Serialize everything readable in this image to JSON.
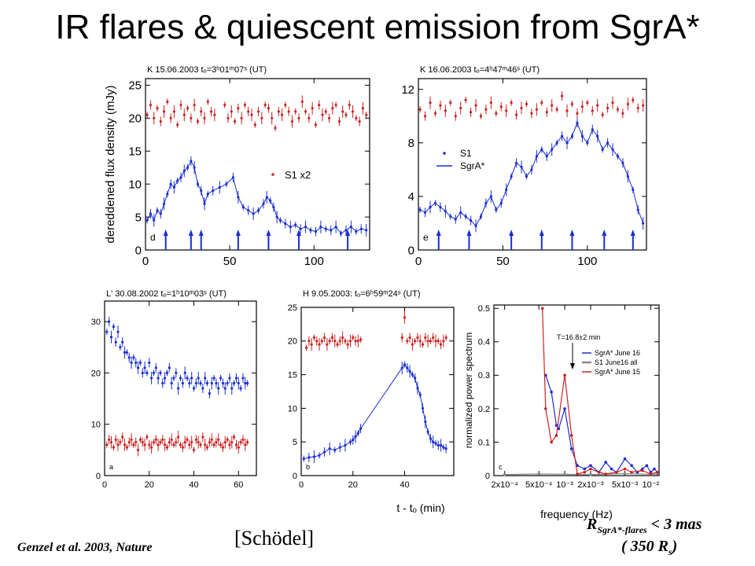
{
  "slide": {
    "title": "IR flares & quiescent emission from SgrA*",
    "citation": "Genzel et al. 2003, Nature",
    "attribution": "[Schödel]",
    "constraint_main": "R",
    "constraint_sub": "SgrA*-flares",
    "constraint_value": " < 3 mas",
    "constraint_line2": "( 350 R",
    "constraint_line2_sub": "s",
    "constraint_line2_end": ")"
  },
  "colors": {
    "red": "#cc2222",
    "blue": "#1a2fd0",
    "gray": "#888888",
    "black": "#000000"
  },
  "chart_data": [
    {
      "id": "d",
      "type": "scatter",
      "title": "K 15.06.2003 tₒ=3ʰ01ᵐ07ˢ (UT)",
      "ylabel": "dereddened flux density (mJy)",
      "xticks": [
        0,
        50,
        100
      ],
      "yticks": [
        0,
        5,
        10,
        15,
        20,
        25
      ],
      "xlim": [
        0,
        133
      ],
      "ylim": [
        0,
        26
      ],
      "panel_letter": "d",
      "legend": [
        "S1 x2"
      ],
      "arrows_x": [
        12,
        27,
        33,
        55,
        73,
        91,
        120
      ],
      "series": [
        {
          "name": "S1 x2",
          "color": "red",
          "style": "points",
          "x": [
            1,
            3,
            5,
            7,
            9,
            11,
            13,
            15,
            17,
            19,
            21,
            23,
            25,
            27,
            29,
            31,
            33,
            35,
            37,
            39,
            41,
            47,
            49,
            51,
            53,
            55,
            57,
            59,
            61,
            63,
            65,
            67,
            69,
            71,
            73,
            75,
            77,
            79,
            81,
            83,
            85,
            87,
            89,
            91,
            93,
            95,
            97,
            99,
            101,
            103,
            105,
            107,
            109,
            111,
            113,
            115,
            117,
            119,
            121,
            123,
            125,
            127,
            129,
            131
          ],
          "y": [
            20.5,
            22,
            20,
            21.5,
            19.5,
            21,
            22.5,
            20,
            21,
            19,
            22,
            20.5,
            21.5,
            20,
            22,
            19.5,
            21,
            20,
            22.5,
            21,
            20.5,
            22,
            20,
            21,
            19.5,
            21.5,
            20,
            22,
            21,
            20.5,
            19,
            21,
            20,
            22,
            21.5,
            20,
            18.5,
            21,
            20.5,
            22,
            21,
            19.5,
            21,
            20,
            22.5,
            21,
            20,
            21.5,
            19,
            22,
            20.5,
            21,
            20,
            21.5,
            22,
            19.5,
            21,
            20.5,
            22,
            21,
            20,
            19.5,
            21.5,
            20.5
          ]
        },
        {
          "name": "SgrA*",
          "color": "blue",
          "style": "line",
          "x": [
            1,
            3,
            5,
            7,
            9,
            11,
            13,
            15,
            17,
            19,
            21,
            23,
            25,
            27,
            29,
            31,
            33,
            35,
            37,
            40,
            44,
            48,
            52,
            55,
            58,
            61,
            64,
            67,
            70,
            72,
            74,
            76,
            78,
            80,
            83,
            86,
            89,
            92,
            95,
            98,
            101,
            104,
            107,
            110,
            113,
            116,
            119,
            122,
            125,
            128,
            131
          ],
          "y": [
            4.5,
            5.5,
            4.5,
            6,
            5.5,
            7,
            8.5,
            10,
            9.5,
            10.5,
            11,
            12,
            12.5,
            13.5,
            12.5,
            10,
            9,
            7,
            8.5,
            9,
            9.5,
            10,
            11,
            8,
            6.5,
            6,
            5.5,
            6,
            7,
            8,
            7.5,
            6.5,
            5,
            4.5,
            4,
            3.5,
            3.8,
            3.2,
            3.5,
            3,
            2.8,
            3.5,
            3.2,
            3,
            3.5,
            2.5,
            3,
            3.5,
            2.8,
            3.2,
            3
          ]
        }
      ]
    },
    {
      "id": "e",
      "type": "scatter",
      "title": "K 16.06.2003 tₒ=4ʰ47ᵐ46ˢ (UT)",
      "xticks": [
        0,
        50,
        100
      ],
      "yticks": [
        0,
        4,
        8,
        12
      ],
      "xlim": [
        0,
        135
      ],
      "ylim": [
        0,
        12.8
      ],
      "panel_letter": "e",
      "legend": [
        "S1",
        "SgrA*"
      ],
      "arrows_x": [
        12,
        30,
        55,
        73,
        91,
        110,
        127
      ],
      "series": [
        {
          "name": "S1",
          "color": "red",
          "style": "points",
          "x": [
            1,
            4,
            7,
            10,
            13,
            16,
            19,
            22,
            25,
            28,
            31,
            34,
            37,
            40,
            43,
            46,
            49,
            52,
            55,
            58,
            61,
            64,
            67,
            70,
            73,
            76,
            79,
            82,
            85,
            88,
            91,
            94,
            97,
            100,
            103,
            106,
            109,
            112,
            115,
            118,
            121,
            124,
            127,
            130,
            133
          ],
          "y": [
            10.5,
            10,
            11,
            10.2,
            10.8,
            10.4,
            11,
            10,
            10.6,
            11.2,
            10.3,
            10.8,
            10,
            10.5,
            11,
            10.2,
            10.7,
            10.4,
            11,
            10.1,
            10.6,
            10.9,
            10.2,
            10.5,
            11,
            10.3,
            10.8,
            10.5,
            11.5,
            10.4,
            10.9,
            10.2,
            10.7,
            11,
            10.4,
            10.8,
            10.1,
            10.6,
            11,
            10.5,
            10.2,
            10.9,
            11.2,
            10.6,
            10.8
          ]
        },
        {
          "name": "SgrA*",
          "color": "blue",
          "style": "line",
          "x": [
            1,
            4,
            7,
            10,
            13,
            16,
            19,
            22,
            25,
            28,
            31,
            34,
            37,
            40,
            43,
            46,
            49,
            52,
            55,
            58,
            61,
            64,
            67,
            70,
            73,
            76,
            79,
            82,
            85,
            88,
            91,
            94,
            97,
            100,
            103,
            106,
            109,
            112,
            115,
            118,
            121,
            124,
            127,
            130,
            133
          ],
          "y": [
            3,
            2.8,
            3.2,
            3.5,
            3.2,
            2.9,
            2.5,
            2.3,
            2.8,
            2.5,
            2.2,
            1.8,
            2.5,
            3.5,
            4,
            3,
            3.5,
            4.5,
            5.5,
            6.5,
            6.2,
            5.5,
            6,
            7,
            7.5,
            7,
            7.5,
            8,
            8.5,
            8,
            8.5,
            9.5,
            8.5,
            8,
            9,
            8.5,
            7.5,
            8,
            7.5,
            7,
            6.5,
            5.5,
            4.5,
            3,
            2
          ]
        }
      ]
    },
    {
      "id": "a",
      "type": "scatter",
      "title": "L' 30.08.2002 tₒ=1ʰ10ᵐ03ˢ (UT)",
      "xticks": [
        0,
        20,
        40,
        60
      ],
      "yticks": [
        0,
        10,
        20,
        30
      ],
      "xlim": [
        0,
        68
      ],
      "ylim": [
        0,
        34
      ],
      "panel_letter": "a",
      "series": [
        {
          "name": "SgrA*",
          "color": "blue",
          "style": "points",
          "x": [
            1,
            2,
            3,
            4,
            5,
            6,
            7,
            8,
            9,
            10,
            11,
            12,
            13,
            14,
            15,
            16,
            17,
            18,
            19,
            20,
            21,
            22,
            23,
            24,
            25,
            26,
            27,
            28,
            29,
            30,
            31,
            32,
            33,
            34,
            35,
            36,
            37,
            38,
            39,
            40,
            41,
            42,
            43,
            44,
            45,
            46,
            47,
            48,
            49,
            50,
            51,
            52,
            53,
            54,
            55,
            56,
            57,
            58,
            59,
            60,
            61,
            62,
            63,
            64
          ],
          "y": [
            28,
            30,
            27,
            29,
            26,
            28,
            25,
            26,
            24,
            24,
            23,
            22,
            23,
            22,
            21,
            22,
            20,
            21,
            20,
            22,
            19,
            20,
            21,
            19,
            20,
            18,
            19,
            20,
            21,
            18,
            19,
            20,
            17,
            19,
            18,
            20,
            19,
            18,
            19,
            17,
            18,
            19,
            18,
            17,
            19,
            18,
            16,
            18,
            19,
            18,
            17,
            19,
            18,
            17,
            18,
            19,
            17,
            18,
            19,
            18,
            17,
            19,
            18,
            18
          ]
        },
        {
          "name": "S1",
          "color": "red",
          "style": "points",
          "x": [
            1,
            2,
            3,
            4,
            5,
            6,
            7,
            8,
            9,
            10,
            11,
            12,
            13,
            14,
            15,
            16,
            17,
            18,
            19,
            20,
            21,
            22,
            23,
            24,
            25,
            26,
            27,
            28,
            29,
            30,
            31,
            32,
            33,
            34,
            35,
            36,
            37,
            38,
            39,
            40,
            41,
            42,
            43,
            44,
            45,
            46,
            47,
            48,
            49,
            50,
            51,
            52,
            53,
            54,
            55,
            56,
            57,
            58,
            59,
            60,
            61,
            62,
            63,
            64
          ],
          "y": [
            6,
            7,
            6.5,
            5.5,
            7,
            6,
            6.5,
            7.5,
            6,
            5.5,
            6.5,
            7,
            6,
            6.5,
            5,
            7,
            6.5,
            6,
            7.5,
            6,
            5.5,
            6.5,
            7,
            6,
            6.5,
            7,
            6,
            5.5,
            6.5,
            7,
            6,
            6.5,
            7.5,
            6,
            5.5,
            6.5,
            7,
            6,
            6.5,
            5,
            7,
            6.5,
            6,
            7.5,
            6,
            5.5,
            6.5,
            7,
            6,
            6.5,
            7,
            6,
            5.5,
            6.5,
            7,
            6,
            6.5,
            7.5,
            6,
            5.5,
            6.5,
            7,
            6,
            6.5
          ]
        }
      ]
    },
    {
      "id": "b",
      "type": "scatter",
      "title": "H 9.05.2003: tₒ=6ʰ59ᵐ24ˢ (UT)",
      "xlabel": "t - tₒ (min)",
      "xticks": [
        0,
        20,
        40
      ],
      "yticks": [
        0,
        5,
        10,
        15,
        20,
        25
      ],
      "xlim": [
        0,
        59
      ],
      "ylim": [
        0,
        25
      ],
      "panel_letter": "b",
      "series": [
        {
          "name": "S1",
          "color": "red",
          "style": "points",
          "x": [
            2,
            3,
            4,
            5,
            6,
            7,
            8,
            9,
            10,
            11,
            12,
            13,
            14,
            15,
            16,
            17,
            18,
            19,
            20,
            21,
            22,
            23,
            39,
            40,
            41,
            42,
            43,
            44,
            45,
            46,
            47,
            48,
            49,
            50,
            51,
            52,
            53,
            54,
            55,
            56
          ],
          "y": [
            19,
            20,
            19.5,
            20.5,
            20,
            19.5,
            20,
            20.5,
            19.5,
            20,
            20.5,
            20,
            19.5,
            20,
            20.5,
            20,
            19.5,
            20,
            20.5,
            20,
            20,
            20.2,
            20.5,
            23.5,
            20,
            20.5,
            19.5,
            20,
            20.5,
            20,
            19.5,
            20.5,
            20,
            20,
            20.5,
            20,
            20,
            19.5,
            20,
            20.5
          ]
        },
        {
          "name": "SgrA*",
          "color": "blue",
          "style": "line",
          "x": [
            1,
            3,
            5,
            7,
            9,
            11,
            13,
            15,
            17,
            19,
            20,
            21,
            22,
            23,
            39,
            40,
            41,
            42,
            43,
            44,
            45,
            46,
            47,
            48,
            49,
            50,
            51,
            52,
            53,
            54,
            55,
            56
          ],
          "y": [
            2.5,
            2.7,
            2.8,
            3,
            3.5,
            4,
            3.8,
            4.2,
            4.5,
            5,
            5.3,
            5.8,
            6.3,
            7,
            16,
            16.5,
            16,
            15.5,
            15,
            14.5,
            13,
            12,
            10,
            8,
            6.5,
            5.5,
            5,
            4.8,
            4.5,
            4.5,
            4.2,
            4
          ]
        }
      ]
    },
    {
      "id": "c",
      "type": "line",
      "xlabel": "frequency (Hz)",
      "ylabel": "normalized power spectrum",
      "annotation": "T=16.8±2 min",
      "xticks": [
        "2x10⁻⁴",
        "5x10⁻⁴",
        "10⁻³",
        "2x10⁻³",
        "5x10⁻³",
        "10⁻²"
      ],
      "xtick_values": [
        0.0002,
        0.0005,
        0.001,
        0.002,
        0.005,
        0.01
      ],
      "yticks": [
        0,
        0.1,
        0.2,
        0.3,
        0.4,
        0.5
      ],
      "xlim": [
        0.00015,
        0.0125
      ],
      "ylim": [
        0,
        0.51
      ],
      "x_scale": "log",
      "panel_letter": "c",
      "legend": [
        "SgrA* June 16",
        "S1 June16 all",
        "SgrA* June 15"
      ],
      "series": [
        {
          "name": "SgrA* June 16",
          "color": "blue",
          "x": [
            0.0005,
            0.0006,
            0.0007,
            0.0008,
            0.00085,
            0.001,
            0.0012,
            0.0014,
            0.0017,
            0.002,
            0.0025,
            0.003,
            0.0035,
            0.004,
            0.005,
            0.006,
            0.007,
            0.008,
            0.009,
            0.01,
            0.011,
            0.012
          ],
          "y": [
            0.52,
            0.3,
            0.25,
            0.15,
            0.14,
            0.2,
            0.08,
            0.03,
            0.02,
            0.03,
            0.01,
            0.04,
            0.02,
            0.01,
            0.05,
            0.03,
            0.01,
            0.02,
            0.03,
            0.01,
            0.02,
            0.01
          ]
        },
        {
          "name": "S1 June16 all",
          "color": "gray",
          "x": [
            0.0002,
            0.0005,
            0.001,
            0.002,
            0.005,
            0.01,
            0.012
          ],
          "y": [
            0.003,
            0.005,
            0.004,
            0.003,
            0.006,
            0.004,
            0.005
          ]
        },
        {
          "name": "SgrA* June 15",
          "color": "red",
          "x": [
            0.00055,
            0.0006,
            0.0007,
            0.0008,
            0.001,
            0.0012,
            0.0014,
            0.0017,
            0.002,
            0.0025,
            0.003,
            0.004,
            0.005,
            0.006,
            0.008,
            0.01,
            0.012
          ],
          "y": [
            0.5,
            0.2,
            0.1,
            0.12,
            0.3,
            0.12,
            0.005,
            0.01,
            0.02,
            0.01,
            0.005,
            0.01,
            0.02,
            0.01,
            0.015,
            0.005,
            0.01
          ]
        }
      ]
    }
  ]
}
